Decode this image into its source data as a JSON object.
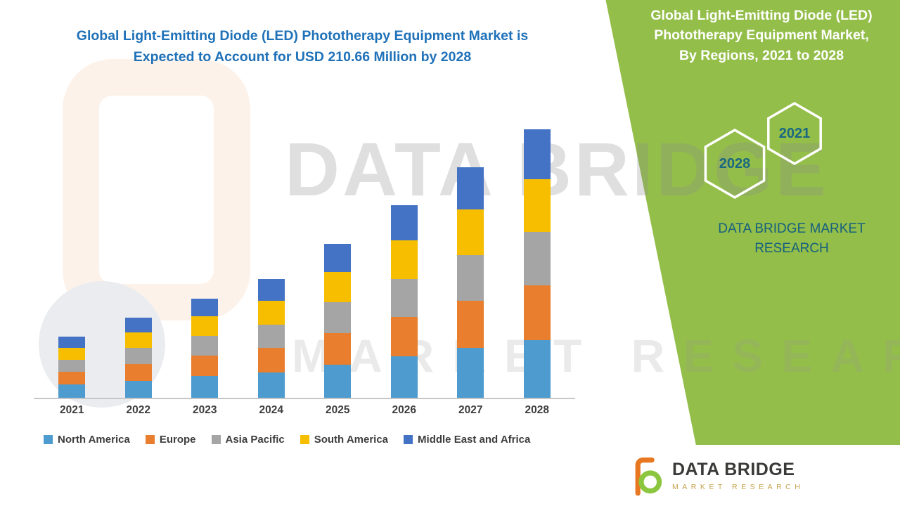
{
  "left_title": {
    "line1": "Global Light-Emitting Diode (LED) Phototherapy Equipment Market is",
    "line2": "Expected to Account for USD 210.66 Million by 2028"
  },
  "right_panel": {
    "title_lines": [
      "Global Light-Emitting Diode (LED)",
      "Phototherapy Equipment Market,",
      "By Regions, 2021 to 2028"
    ],
    "hex_year_back": "2021",
    "hex_year_front": "2028",
    "brand_text": "DATA BRIDGE MARKET RESEARCH",
    "panel_color": "#94BE4A",
    "year_text_color": "#1A6880"
  },
  "watermark": {
    "line1": "DATA BRIDGE",
    "line2": "MARKET RESEARCH"
  },
  "footer_logo": {
    "name": "DATA BRIDGE",
    "subtitle": "MARKET RESEARCH"
  },
  "chart_data": {
    "type": "bar",
    "stacked": true,
    "title": "Global Light-Emitting Diode (LED) Phototherapy Equipment Market is Expected to Account for USD 210.66 Million by 2028",
    "value_unit": "USD Million",
    "categories": [
      "2021",
      "2022",
      "2023",
      "2024",
      "2025",
      "2026",
      "2027",
      "2028"
    ],
    "series": [
      {
        "name": "North America",
        "color": "#4E9BCF",
        "values": [
          10.5,
          13.5,
          17,
          20,
          26,
          32.5,
          39,
          45
        ]
      },
      {
        "name": "Europe",
        "color": "#E87E2E",
        "values": [
          10,
          13,
          16,
          19,
          25,
          31,
          37,
          43
        ]
      },
      {
        "name": "Asia Pacific",
        "color": "#A5A5A5",
        "values": [
          9.5,
          12.5,
          15.5,
          18.5,
          24,
          30,
          36,
          42
        ]
      },
      {
        "name": "South America",
        "color": "#F7BE00",
        "values": [
          9.5,
          12.5,
          15.5,
          18.5,
          24,
          30,
          36,
          41.5
        ]
      },
      {
        "name": "Middle East and Africa",
        "color": "#4472C4",
        "values": [
          8.5,
          11.5,
          14,
          17,
          22,
          27.5,
          33,
          39.16
        ]
      }
    ],
    "totals": [
      48,
      63,
      78,
      93,
      121,
      151,
      181,
      210.66
    ],
    "ylim": [
      0,
      220
    ],
    "grid": false,
    "legend_position": "bottom",
    "axis_text_color": "#3D3D3D"
  }
}
